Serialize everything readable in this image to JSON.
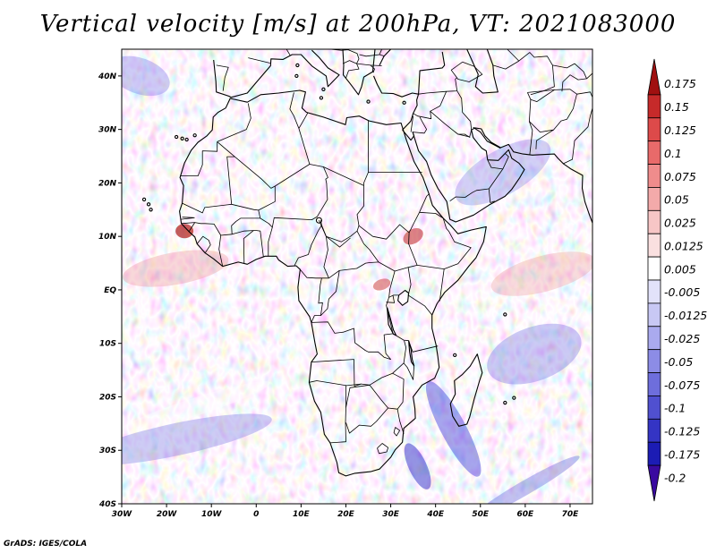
{
  "title": "Vertical velocity [m/s] at 200hPa, VT: 2021083000",
  "footer": "GrADS: IGES/COLA",
  "map": {
    "variable": "Vertical velocity",
    "units": "m/s",
    "level": "200hPa",
    "valid_time": "2021083000",
    "lon_range": [
      -30,
      75
    ],
    "lat_range": [
      -40,
      45
    ],
    "lon_ticks": [
      {
        "value": -30,
        "label": "30W"
      },
      {
        "value": -20,
        "label": "20W"
      },
      {
        "value": -10,
        "label": "10W"
      },
      {
        "value": 0,
        "label": "0"
      },
      {
        "value": 10,
        "label": "10E"
      },
      {
        "value": 20,
        "label": "20E"
      },
      {
        "value": 30,
        "label": "30E"
      },
      {
        "value": 40,
        "label": "40E"
      },
      {
        "value": 50,
        "label": "50E"
      },
      {
        "value": 60,
        "label": "60E"
      },
      {
        "value": 70,
        "label": "70E"
      }
    ],
    "lat_ticks": [
      {
        "value": 40,
        "label": "40N"
      },
      {
        "value": 30,
        "label": "30N"
      },
      {
        "value": 20,
        "label": "20N"
      },
      {
        "value": 10,
        "label": "10N"
      },
      {
        "value": 0,
        "label": "EQ"
      },
      {
        "value": -10,
        "label": "10S"
      },
      {
        "value": -20,
        "label": "20S"
      },
      {
        "value": -30,
        "label": "30S"
      },
      {
        "value": -40,
        "label": "40S"
      }
    ]
  },
  "colorbar": {
    "levels": [
      "0.175",
      "0.15",
      "0.125",
      "0.1",
      "0.075",
      "0.05",
      "0.025",
      "0.0125",
      "0.005",
      "-0.005",
      "-0.0125",
      "-0.025",
      "-0.05",
      "-0.075",
      "-0.1",
      "-0.125",
      "-0.175",
      "-0.2"
    ],
    "colors": [
      "#a01010",
      "#c62a2a",
      "#dd4a4a",
      "#e86a6a",
      "#ef8c8c",
      "#f3aaaa",
      "#f7c6c6",
      "#fae0e0",
      "#ffffff",
      "#e2e2fa",
      "#c8c8f4",
      "#aaaaee",
      "#8c8ce6",
      "#6e6edc",
      "#5050d0",
      "#3434c4",
      "#1c1cb4",
      "#3a0aa0"
    ]
  }
}
